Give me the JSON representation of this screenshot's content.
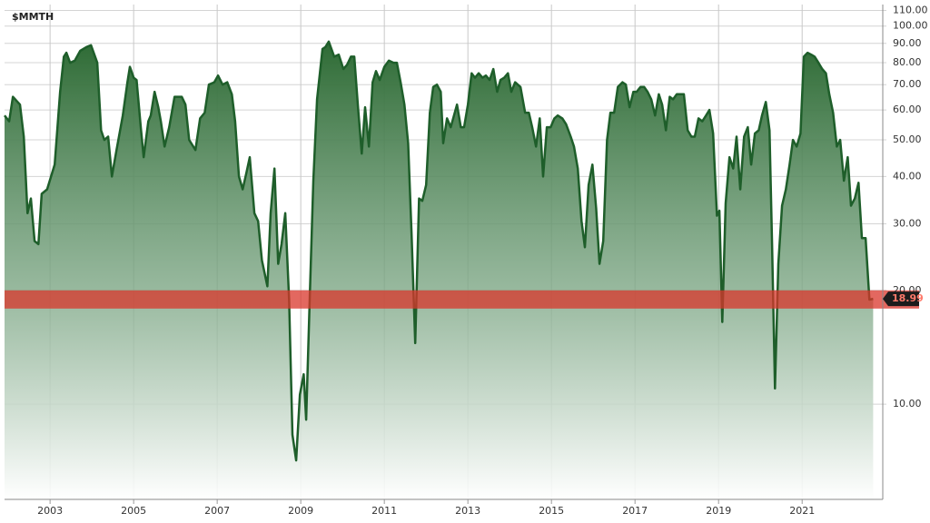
{
  "chart_data": {
    "type": "area",
    "title": "$MMTH",
    "color": "#1e5e2a",
    "log_scale": true,
    "grid": true,
    "xlim": [
      2001.91,
      2022.93
    ],
    "ylim": [
      5.6,
      114
    ],
    "xticks": [
      2003,
      2005,
      2007,
      2009,
      2011,
      2013,
      2015,
      2017,
      2019,
      2021
    ],
    "yticks": [
      {
        "value": 10,
        "label": "10.00"
      },
      {
        "value": 20,
        "label": "20.00"
      },
      {
        "value": 30,
        "label": "30.00"
      },
      {
        "value": 40,
        "label": "40.00"
      },
      {
        "value": 50,
        "label": "50.00"
      },
      {
        "value": 60,
        "label": "60.00"
      },
      {
        "value": 70,
        "label": "70.00"
      },
      {
        "value": 80,
        "label": "80.00"
      },
      {
        "value": 90,
        "label": "90.00"
      },
      {
        "value": 100,
        "label": "100.00"
      },
      {
        "value": 110,
        "label": "110.00"
      }
    ],
    "band": [
      17.9,
      20
    ],
    "band_color": "#d9362b",
    "x": [
      2001.91,
      2002.02,
      2002.11,
      2002.28,
      2002.37,
      2002.46,
      2002.54,
      2002.63,
      2002.72,
      2002.8,
      2002.93,
      2003.11,
      2003.24,
      2003.33,
      2003.39,
      2003.48,
      2003.59,
      2003.72,
      2003.87,
      2003.98,
      2004.13,
      2004.22,
      2004.3,
      2004.39,
      2004.48,
      2004.59,
      2004.74,
      2004.85,
      2004.91,
      2005.0,
      2005.07,
      2005.17,
      2005.24,
      2005.35,
      2005.41,
      2005.5,
      2005.59,
      2005.65,
      2005.74,
      2005.85,
      2005.98,
      2006.15,
      2006.24,
      2006.33,
      2006.48,
      2006.59,
      2006.7,
      2006.8,
      2006.93,
      2007.02,
      2007.13,
      2007.24,
      2007.35,
      2007.43,
      2007.52,
      2007.61,
      2007.7,
      2007.78,
      2007.89,
      2007.98,
      2008.07,
      2008.2,
      2008.28,
      2008.37,
      2008.46,
      2008.54,
      2008.63,
      2008.72,
      2008.8,
      2008.89,
      2008.98,
      2009.07,
      2009.13,
      2009.22,
      2009.3,
      2009.39,
      2009.52,
      2009.59,
      2009.67,
      2009.8,
      2009.91,
      2010.02,
      2010.11,
      2010.2,
      2010.28,
      2010.37,
      2010.46,
      2010.54,
      2010.63,
      2010.72,
      2010.8,
      2010.89,
      2011.0,
      2011.11,
      2011.22,
      2011.3,
      2011.39,
      2011.48,
      2011.57,
      2011.65,
      2011.74,
      2011.83,
      2011.91,
      2012.0,
      2012.09,
      2012.17,
      2012.26,
      2012.35,
      2012.41,
      2012.5,
      2012.59,
      2012.74,
      2012.83,
      2012.91,
      2013.0,
      2013.09,
      2013.17,
      2013.26,
      2013.35,
      2013.43,
      2013.52,
      2013.61,
      2013.7,
      2013.78,
      2013.87,
      2013.96,
      2014.04,
      2014.13,
      2014.26,
      2014.37,
      2014.46,
      2014.54,
      2014.63,
      2014.72,
      2014.8,
      2014.89,
      2014.98,
      2015.07,
      2015.15,
      2015.26,
      2015.35,
      2015.46,
      2015.54,
      2015.63,
      2015.72,
      2015.8,
      2015.89,
      2015.98,
      2016.07,
      2016.15,
      2016.24,
      2016.33,
      2016.41,
      2016.5,
      2016.59,
      2016.7,
      2016.78,
      2016.87,
      2016.96,
      2017.04,
      2017.13,
      2017.22,
      2017.3,
      2017.39,
      2017.48,
      2017.57,
      2017.65,
      2017.74,
      2017.83,
      2017.91,
      2018.0,
      2018.09,
      2018.17,
      2018.26,
      2018.35,
      2018.43,
      2018.52,
      2018.61,
      2018.7,
      2018.78,
      2018.87,
      2018.96,
      2019.02,
      2019.09,
      2019.17,
      2019.26,
      2019.35,
      2019.43,
      2019.52,
      2019.61,
      2019.7,
      2019.78,
      2019.87,
      2019.96,
      2020.04,
      2020.13,
      2020.22,
      2020.28,
      2020.35,
      2020.43,
      2020.52,
      2020.61,
      2020.7,
      2020.78,
      2020.87,
      2020.96,
      2021.04,
      2021.13,
      2021.22,
      2021.3,
      2021.39,
      2021.48,
      2021.57,
      2021.65,
      2021.74,
      2021.83,
      2021.91,
      2022.0,
      2022.09,
      2022.17,
      2022.26,
      2022.35,
      2022.43,
      2022.52,
      2022.61,
      2022.7
    ],
    "values": [
      58,
      56,
      65,
      62,
      51,
      32,
      35,
      27,
      26.5,
      36,
      37,
      43,
      67,
      83,
      85,
      80,
      81,
      86,
      88,
      89,
      80,
      53,
      50,
      51,
      40,
      47,
      58,
      71,
      78,
      73,
      72,
      54,
      45,
      56,
      58,
      67,
      61,
      56,
      48,
      54,
      65,
      65,
      62,
      50,
      47,
      57,
      59,
      70,
      71,
      74,
      70,
      71,
      66,
      56,
      40,
      37,
      41,
      45,
      32,
      30.5,
      24,
      20.5,
      32,
      42,
      23.5,
      26.5,
      32,
      19,
      8.3,
      7.1,
      10.6,
      12,
      9.1,
      20,
      39,
      64,
      87,
      88,
      91,
      83,
      84,
      77,
      79,
      83,
      83,
      61,
      46,
      61,
      48,
      71,
      76,
      72,
      78,
      81,
      80,
      80,
      71,
      62,
      49,
      28.5,
      14.5,
      35,
      34.5,
      38,
      59,
      69,
      70,
      67,
      49,
      57,
      54,
      62,
      54,
      54,
      62,
      75,
      73,
      75,
      73,
      74,
      72,
      77,
      67,
      72,
      73,
      75,
      67,
      71,
      69,
      59,
      59,
      54,
      48,
      57,
      40,
      54,
      54,
      57,
      58,
      57,
      55,
      51,
      48,
      42,
      30.5,
      26,
      38,
      43,
      33,
      23.5,
      27,
      50,
      59,
      59,
      69,
      71,
      70,
      61,
      67,
      67,
      69,
      69,
      67,
      64,
      58,
      66,
      62,
      53,
      65,
      64,
      66,
      66,
      66,
      53,
      51,
      51,
      57,
      56,
      58,
      60,
      52,
      31.5,
      32.5,
      16.5,
      34,
      45,
      42,
      51,
      37,
      51,
      54,
      43,
      52,
      53,
      58,
      63,
      53,
      26.5,
      11,
      23.5,
      33.5,
      37,
      43,
      50,
      48,
      52,
      83,
      85,
      84,
      83,
      80,
      77,
      75,
      66,
      59,
      48,
      50,
      39,
      45,
      33.5,
      35,
      38.5,
      27.5,
      27.5,
      18.9,
      18.99
    ]
  }
}
